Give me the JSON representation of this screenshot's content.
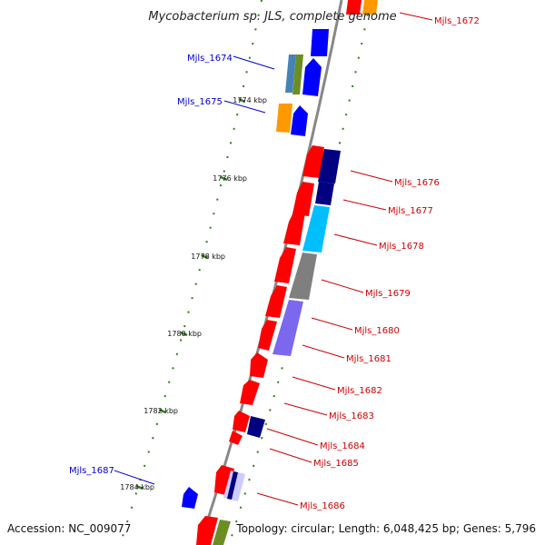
{
  "title": "Mycobacterium sp. JLS, complete genome",
  "footer": {
    "accession": "Accession: NC_009077",
    "topology": "Topology: circular; Length: 6,048,425 bp; Genes: 5,796"
  },
  "colors": {
    "background": "#ffffff",
    "backbone": "#888888",
    "tick": "#2e7d1a",
    "label_forward": "#0000cc",
    "label_reverse": "#cc0000",
    "red": "#ff0000",
    "blue": "#0000ff",
    "navy": "#000080",
    "orange": "#ff9900",
    "olive": "#6b8e23",
    "steel": "#4682b4",
    "cyan": "#00bfff",
    "gray": "#7f7f7f",
    "purple": "#7b68ee",
    "lavender": "#ccccff"
  },
  "scale_labels": [
    "1774 kbp",
    "1776 kbp",
    "1778 kbp",
    "1780 kbp",
    "1782 kbp",
    "1784 kbp"
  ],
  "forward_genes": [
    "Mjls_1674",
    "Mjls_1675",
    "Mjls_1687"
  ],
  "reverse_genes": [
    "Mjls_1672",
    "Mjls_1676",
    "Mjls_1677",
    "Mjls_1678",
    "Mjls_1679",
    "Mjls_1680",
    "Mjls_1681",
    "Mjls_1682",
    "Mjls_1683",
    "Mjls_1684",
    "Mjls_1685",
    "Mjls_1686"
  ]
}
